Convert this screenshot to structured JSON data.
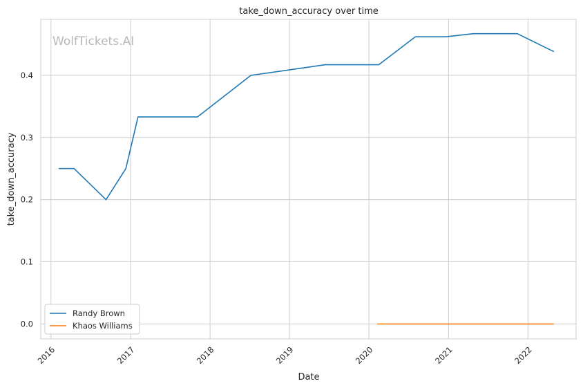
{
  "watermark": "WolfTickets.AI",
  "chart_data": {
    "type": "line",
    "title": "take_down_accuracy over time",
    "xlabel": "Date",
    "ylabel": "take_down_accuracy",
    "x_ticks": [
      "2016",
      "2017",
      "2018",
      "2019",
      "2020",
      "2021",
      "2022"
    ],
    "y_ticks": [
      "0.0",
      "0.1",
      "0.2",
      "0.3",
      "0.4"
    ],
    "ylim": [
      -0.024,
      0.49
    ],
    "xlim": [
      "2015-11-15",
      "2022-08-10"
    ],
    "grid": true,
    "legend_position": "lower-left",
    "series": [
      {
        "name": "Randy Brown",
        "color": "#1f77b4",
        "points": [
          {
            "x": "2016-02-06",
            "y": 0.25
          },
          {
            "x": "2016-04-16",
            "y": 0.25
          },
          {
            "x": "2016-09-10",
            "y": 0.2
          },
          {
            "x": "2016-12-10",
            "y": 0.25
          },
          {
            "x": "2017-02-04",
            "y": 0.333
          },
          {
            "x": "2017-11-04",
            "y": 0.333
          },
          {
            "x": "2018-07-08",
            "y": 0.4
          },
          {
            "x": "2019-06-15",
            "y": 0.417
          },
          {
            "x": "2020-02-15",
            "y": 0.417
          },
          {
            "x": "2020-08-01",
            "y": 0.462
          },
          {
            "x": "2020-12-19",
            "y": 0.462
          },
          {
            "x": "2021-04-24",
            "y": 0.467
          },
          {
            "x": "2021-11-13",
            "y": 0.467
          },
          {
            "x": "2022-04-30",
            "y": 0.438
          }
        ]
      },
      {
        "name": "Khaos Williams",
        "color": "#ff7f0e",
        "points": [
          {
            "x": "2020-02-08",
            "y": 0.0
          },
          {
            "x": "2020-08-01",
            "y": 0.0
          },
          {
            "x": "2020-12-19",
            "y": 0.0
          },
          {
            "x": "2021-04-24",
            "y": 0.0
          },
          {
            "x": "2021-11-13",
            "y": 0.0
          },
          {
            "x": "2022-04-30",
            "y": 0.0
          }
        ]
      }
    ]
  }
}
